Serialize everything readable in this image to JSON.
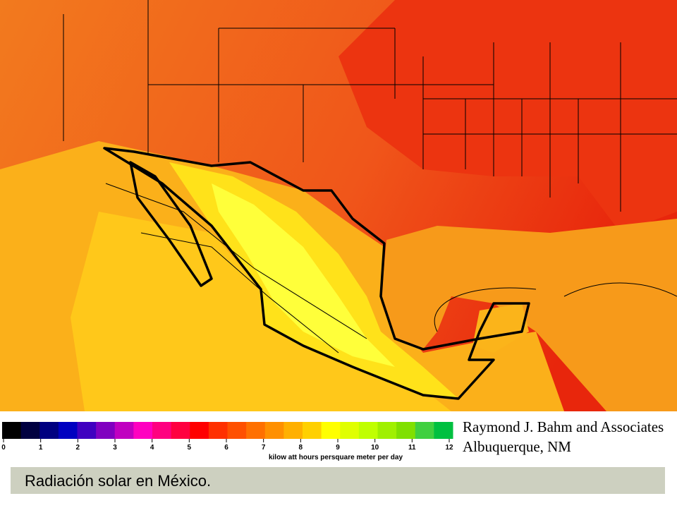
{
  "legend": {
    "ticks": [
      0,
      1,
      2,
      3,
      4,
      5,
      6,
      7,
      8,
      9,
      10,
      11,
      12
    ],
    "range": [
      0,
      12
    ],
    "unit_label": "kilow att hours persquare meter per day",
    "colors": [
      "#000000",
      "#000040",
      "#000080",
      "#0000c0",
      "#4000c0",
      "#8000c0",
      "#c000c0",
      "#ff00c0",
      "#ff0080",
      "#ff0040",
      "#ff0000",
      "#ff3000",
      "#ff5000",
      "#ff7000",
      "#ff9000",
      "#ffb000",
      "#ffd000",
      "#ffff00",
      "#e0ff00",
      "#c0ff00",
      "#a0f000",
      "#80e000",
      "#40d040",
      "#00c040"
    ]
  },
  "credit": {
    "line1": "Raymond J. Bahm and Associates",
    "line2": "Albuquerque, NM"
  },
  "caption": "Radiación solar en México."
}
